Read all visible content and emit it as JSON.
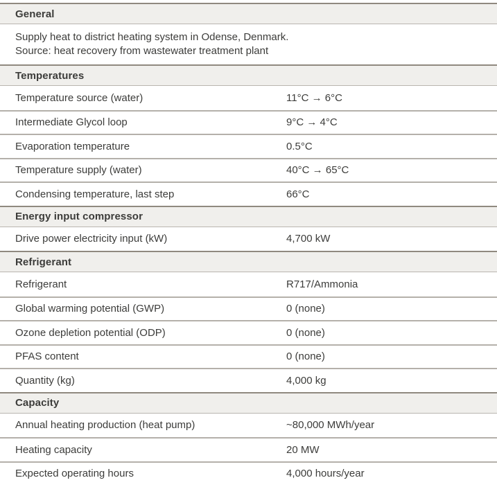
{
  "table": {
    "sections": [
      {
        "title": "General",
        "description": [
          "Supply heat to district heating system in Odense, Denmark.",
          "Source: heat recovery from wastewater treatment plant"
        ],
        "rows": []
      },
      {
        "title": "Temperatures",
        "rows": [
          {
            "label": "Temperature source (water)",
            "value": "11°C → 6°C"
          },
          {
            "label": "Intermediate Glycol loop",
            "value": "9°C → 4°C"
          },
          {
            "label": "Evaporation temperature",
            "value": "0.5°C"
          },
          {
            "label": "Temperature supply (water)",
            "value": "40°C → 65°C"
          },
          {
            "label": "Condensing temperature, last step",
            "value": "66°C"
          }
        ]
      },
      {
        "title": "Energy input compressor",
        "rows": [
          {
            "label": "Drive power electricity input (kW)",
            "value": "4,700 kW"
          }
        ]
      },
      {
        "title": "Refrigerant",
        "rows": [
          {
            "label": "Refrigerant",
            "value": "R717/Ammonia"
          },
          {
            "label": "Global warming potential (GWP)",
            "value": "0 (none)"
          },
          {
            "label": "Ozone depletion potential (ODP)",
            "value": "0 (none)"
          },
          {
            "label": "PFAS content",
            "value": "0 (none)"
          },
          {
            "label": "Quantity (kg)",
            "value": "4,000 kg"
          }
        ]
      },
      {
        "title": "Capacity",
        "rows": [
          {
            "label": "Annual heating production (heat pump)",
            "value": "~80,000 MWh/year"
          },
          {
            "label": "Heating capacity",
            "value": "20 MW"
          },
          {
            "label": "Expected operating hours",
            "value": "4,000 hours/year"
          }
        ]
      }
    ]
  },
  "colors": {
    "header_bg": "#f0efec",
    "header_top_border": "#8f897f",
    "header_bottom_border": "#b9b5af",
    "row_separator": "#b4b0aa",
    "text": "#3c3c3a",
    "background": "#ffffff"
  }
}
